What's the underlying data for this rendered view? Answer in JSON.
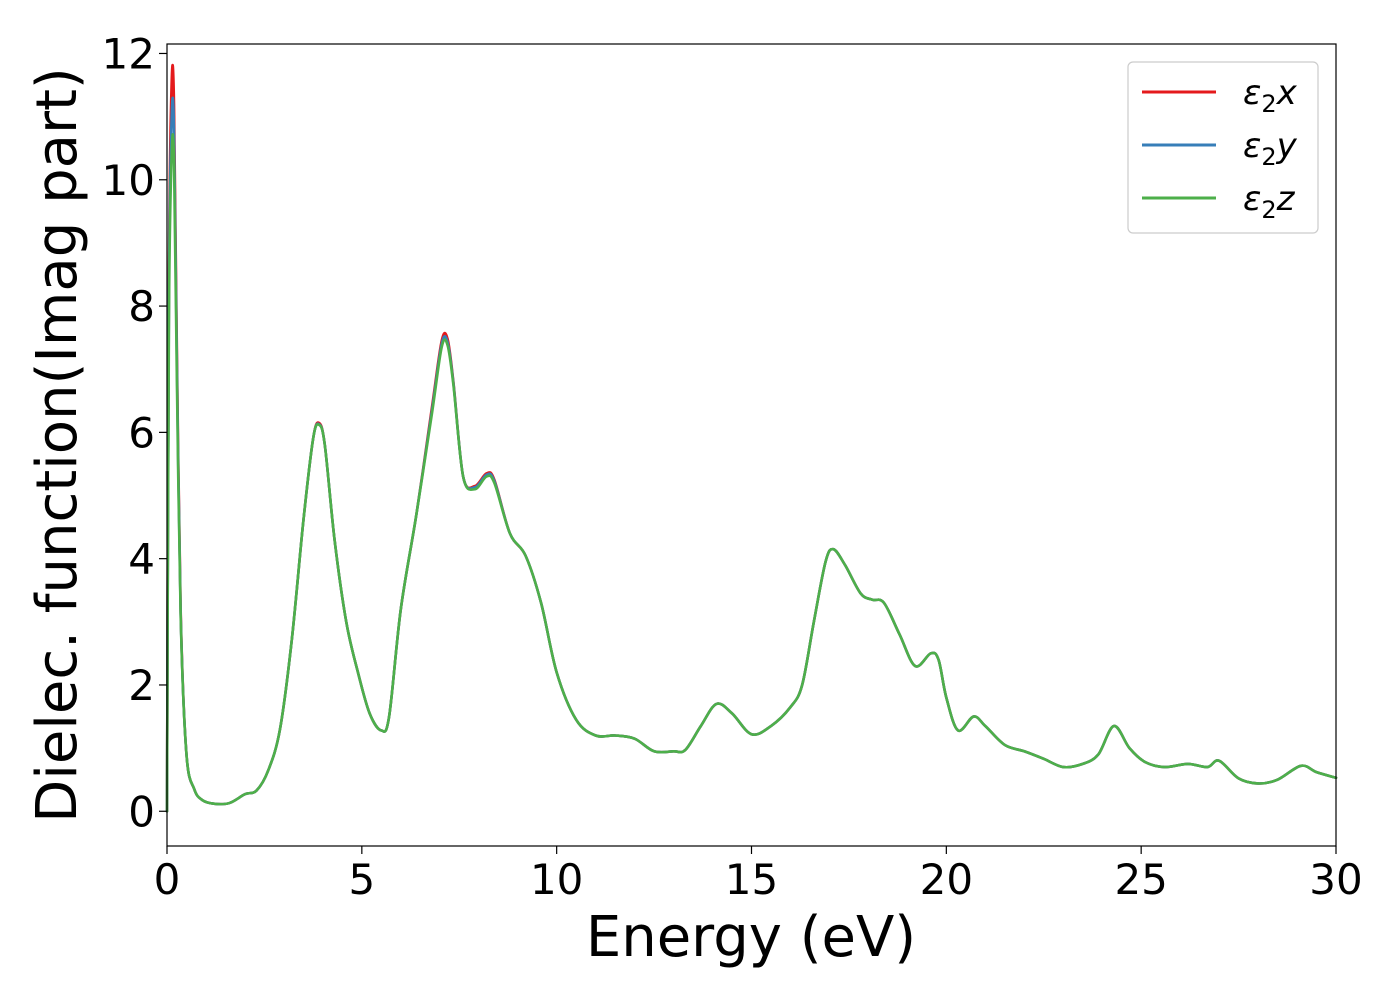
{
  "chart_data": {
    "type": "line",
    "title": "",
    "xlabel": "Energy (eV)",
    "ylabel": "Dielec. function(Imag part)",
    "xlim": [
      0,
      30
    ],
    "ylim": [
      -0.55,
      12.15
    ],
    "xticks": [
      0,
      5,
      10,
      15,
      20,
      25,
      30
    ],
    "xtick_labels": [
      "0",
      "5",
      "10",
      "15",
      "20",
      "25",
      "30"
    ],
    "yticks": [
      0,
      2,
      4,
      6,
      8,
      10,
      12
    ],
    "ytick_labels": [
      "0",
      "2",
      "4",
      "6",
      "8",
      "10",
      "12"
    ],
    "grid": false,
    "legend_position": "top-right",
    "series": [
      {
        "name": "ε2x",
        "legend_parts": [
          "ε",
          "2",
          "x"
        ],
        "color": "#e41a1c",
        "x": [
          0,
          0.05,
          0.12,
          0.18,
          0.25,
          0.35,
          0.5,
          0.7,
          0.9,
          1.2,
          1.6,
          2.0,
          2.3,
          2.6,
          2.9,
          3.2,
          3.5,
          3.75,
          3.9,
          4.05,
          4.3,
          4.6,
          4.9,
          5.2,
          5.5,
          5.7,
          6.0,
          6.4,
          6.8,
          7.05,
          7.2,
          7.35,
          7.6,
          7.9,
          8.2,
          8.4,
          8.8,
          9.2,
          9.6,
          10.0,
          10.5,
          11.0,
          11.5,
          12.0,
          12.5,
          13.0,
          13.3,
          13.7,
          14.1,
          14.5,
          15.0,
          15.5,
          16.0,
          16.3,
          16.6,
          16.9,
          17.1,
          17.4,
          17.8,
          18.1,
          18.4,
          18.8,
          19.2,
          19.6,
          19.8,
          20.0,
          20.3,
          20.7,
          21.0,
          21.5,
          22.0,
          22.5,
          23.0,
          23.5,
          23.9,
          24.3,
          24.7,
          25.1,
          25.6,
          26.2,
          26.7,
          27.0,
          27.5,
          28.0,
          28.5,
          29.1,
          29.5,
          30.0
        ],
        "values": [
          0,
          8.5,
          11.55,
          11.2,
          7.5,
          3.2,
          0.9,
          0.35,
          0.18,
          0.12,
          0.13,
          0.27,
          0.33,
          0.65,
          1.3,
          2.7,
          4.6,
          5.9,
          6.15,
          5.8,
          4.3,
          3.0,
          2.2,
          1.55,
          1.28,
          1.5,
          3.2,
          4.7,
          6.4,
          7.45,
          7.48,
          6.8,
          5.3,
          5.15,
          5.35,
          5.25,
          4.4,
          4.05,
          3.3,
          2.2,
          1.45,
          1.2,
          1.2,
          1.15,
          0.95,
          0.95,
          0.97,
          1.35,
          1.7,
          1.55,
          1.22,
          1.35,
          1.65,
          2.0,
          3.0,
          3.95,
          4.15,
          3.9,
          3.45,
          3.35,
          3.3,
          2.8,
          2.3,
          2.5,
          2.4,
          1.8,
          1.28,
          1.5,
          1.35,
          1.05,
          0.95,
          0.83,
          0.7,
          0.75,
          0.9,
          1.35,
          1.0,
          0.78,
          0.7,
          0.75,
          0.7,
          0.8,
          0.52,
          0.44,
          0.5,
          0.72,
          0.62,
          0.53
        ]
      },
      {
        "name": "ε2y",
        "legend_parts": [
          "ε",
          "2",
          "y"
        ],
        "color": "#377eb8",
        "x": [
          0,
          0.05,
          0.12,
          0.18,
          0.25,
          0.35,
          0.5,
          0.7,
          0.9,
          1.2,
          1.6,
          2.0,
          2.3,
          2.6,
          2.9,
          3.2,
          3.5,
          3.75,
          3.9,
          4.05,
          4.3,
          4.6,
          4.9,
          5.2,
          5.5,
          5.7,
          6.0,
          6.4,
          6.8,
          7.05,
          7.2,
          7.35,
          7.6,
          7.9,
          8.2,
          8.4,
          8.8,
          9.2,
          9.6,
          10.0,
          10.5,
          11.0,
          11.5,
          12.0,
          12.5,
          13.0,
          13.3,
          13.7,
          14.1,
          14.5,
          15.0,
          15.5,
          16.0,
          16.3,
          16.6,
          16.9,
          17.1,
          17.4,
          17.8,
          18.1,
          18.4,
          18.8,
          19.2,
          19.6,
          19.8,
          20.0,
          20.3,
          20.7,
          21.0,
          21.5,
          22.0,
          22.5,
          23.0,
          23.5,
          23.9,
          24.3,
          24.7,
          25.1,
          25.6,
          26.2,
          26.7,
          27.0,
          27.5,
          28.0,
          28.5,
          29.1,
          29.5,
          30.0
        ],
        "values": [
          0,
          8.2,
          11.0,
          10.8,
          7.3,
          3.15,
          0.9,
          0.35,
          0.18,
          0.12,
          0.13,
          0.27,
          0.33,
          0.65,
          1.3,
          2.7,
          4.6,
          5.9,
          6.13,
          5.8,
          4.3,
          3.0,
          2.2,
          1.55,
          1.28,
          1.5,
          3.2,
          4.7,
          6.35,
          7.4,
          7.43,
          6.78,
          5.3,
          5.13,
          5.33,
          5.23,
          4.4,
          4.05,
          3.3,
          2.2,
          1.45,
          1.2,
          1.2,
          1.15,
          0.95,
          0.95,
          0.97,
          1.35,
          1.7,
          1.55,
          1.22,
          1.35,
          1.65,
          2.0,
          3.0,
          3.95,
          4.15,
          3.9,
          3.45,
          3.35,
          3.3,
          2.8,
          2.3,
          2.5,
          2.4,
          1.8,
          1.28,
          1.5,
          1.35,
          1.05,
          0.95,
          0.83,
          0.7,
          0.75,
          0.9,
          1.35,
          1.0,
          0.78,
          0.7,
          0.75,
          0.7,
          0.8,
          0.52,
          0.44,
          0.5,
          0.72,
          0.62,
          0.53
        ]
      },
      {
        "name": "ε2z",
        "legend_parts": [
          "ε",
          "2",
          "z"
        ],
        "color": "#4daf4a",
        "x": [
          0,
          0.05,
          0.12,
          0.18,
          0.25,
          0.35,
          0.5,
          0.7,
          0.9,
          1.2,
          1.6,
          2.0,
          2.3,
          2.6,
          2.9,
          3.2,
          3.5,
          3.75,
          3.9,
          4.05,
          4.3,
          4.6,
          4.9,
          5.2,
          5.5,
          5.7,
          6.0,
          6.4,
          6.8,
          7.05,
          7.2,
          7.35,
          7.6,
          7.9,
          8.2,
          8.4,
          8.8,
          9.2,
          9.6,
          10.0,
          10.5,
          11.0,
          11.5,
          12.0,
          12.5,
          13.0,
          13.3,
          13.7,
          14.1,
          14.5,
          15.0,
          15.5,
          16.0,
          16.3,
          16.6,
          16.9,
          17.1,
          17.4,
          17.8,
          18.1,
          18.4,
          18.8,
          19.2,
          19.6,
          19.8,
          20.0,
          20.3,
          20.7,
          21.0,
          21.5,
          22.0,
          22.5,
          23.0,
          23.5,
          23.9,
          24.3,
          24.7,
          25.1,
          25.6,
          26.2,
          26.7,
          27.0,
          27.5,
          28.0,
          28.5,
          29.1,
          29.5,
          30.0
        ],
        "values": [
          0,
          7.8,
          10.4,
          10.3,
          7.0,
          3.1,
          0.9,
          0.35,
          0.18,
          0.12,
          0.13,
          0.27,
          0.33,
          0.65,
          1.3,
          2.7,
          4.6,
          5.9,
          6.12,
          5.8,
          4.3,
          3.0,
          2.2,
          1.55,
          1.28,
          1.5,
          3.2,
          4.7,
          6.3,
          7.35,
          7.38,
          6.75,
          5.3,
          5.1,
          5.3,
          5.2,
          4.4,
          4.05,
          3.3,
          2.2,
          1.45,
          1.2,
          1.2,
          1.15,
          0.95,
          0.95,
          0.97,
          1.35,
          1.7,
          1.55,
          1.22,
          1.35,
          1.65,
          2.0,
          3.0,
          3.95,
          4.15,
          3.9,
          3.45,
          3.35,
          3.3,
          2.8,
          2.3,
          2.5,
          2.4,
          1.8,
          1.28,
          1.5,
          1.35,
          1.05,
          0.95,
          0.83,
          0.7,
          0.75,
          0.9,
          1.35,
          1.0,
          0.78,
          0.7,
          0.75,
          0.7,
          0.8,
          0.52,
          0.44,
          0.5,
          0.72,
          0.62,
          0.53
        ]
      }
    ]
  }
}
